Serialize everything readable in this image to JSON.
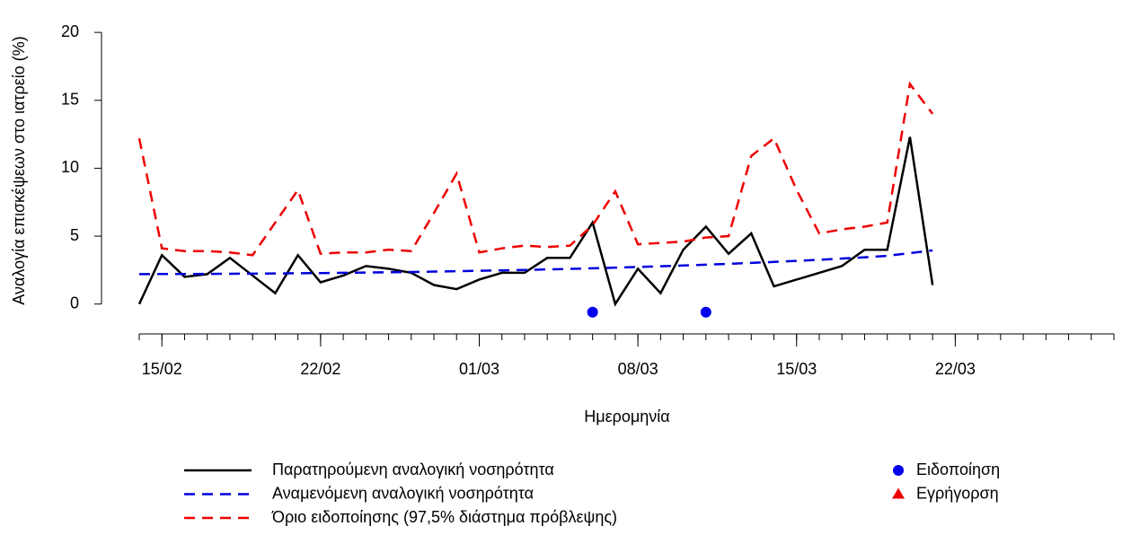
{
  "chart_data": {
    "type": "line",
    "ylabel": "Αναλογία επισκέψεων στο ιατρείο (%)",
    "xlabel": "Ημερομηνία",
    "x": [
      "14/02",
      "15/02",
      "16/02",
      "17/02",
      "18/02",
      "19/02",
      "20/02",
      "21/02",
      "22/02",
      "23/02",
      "24/02",
      "25/02",
      "26/02",
      "27/02",
      "28/02",
      "01/03",
      "02/03",
      "03/03",
      "04/03",
      "05/03",
      "06/03",
      "07/03",
      "08/03",
      "09/03",
      "10/03",
      "11/03",
      "12/03",
      "13/03",
      "14/03",
      "15/03",
      "16/03",
      "17/03",
      "18/03",
      "19/03",
      "20/03",
      "21/03"
    ],
    "series": [
      {
        "name": "Παρατηρούμενη αναλογική νοσηρότητα",
        "color": "#000000",
        "style": "solid",
        "values": [
          0,
          3.6,
          2.0,
          2.2,
          3.4,
          2.1,
          0.8,
          3.6,
          1.6,
          2.1,
          2.8,
          2.6,
          2.3,
          1.4,
          1.1,
          1.8,
          2.3,
          2.3,
          3.4,
          3.4,
          6.0,
          0,
          2.6,
          0.8,
          4.0,
          5.7,
          3.7,
          5.2,
          1.3,
          1.8,
          2.3,
          2.8,
          4.0,
          4.0,
          12.3,
          1.4
        ]
      },
      {
        "name": "Αναμενόμενη αναλογική νοσηρότητα",
        "color": "#0000dd",
        "style": "dashed",
        "values": [
          2.2,
          2.21,
          2.21,
          2.22,
          2.23,
          2.24,
          2.25,
          2.27,
          2.28,
          2.3,
          2.32,
          2.34,
          2.36,
          2.39,
          2.42,
          2.45,
          2.48,
          2.51,
          2.55,
          2.59,
          2.63,
          2.68,
          2.73,
          2.78,
          2.84,
          2.9,
          2.96,
          3.03,
          3.1,
          3.18,
          3.26,
          3.35,
          3.44,
          3.55,
          3.75,
          3.95
        ]
      },
      {
        "name": "Όριο ειδοποίησης (97,5% διάστημα πρόβλεψης)",
        "color": "#ee0000",
        "style": "dashed",
        "values": [
          12.2,
          4.1,
          3.9,
          3.9,
          3.8,
          3.6,
          6.0,
          8.4,
          3.7,
          3.8,
          3.8,
          4.0,
          3.9,
          6.7,
          9.6,
          3.8,
          4.1,
          4.3,
          4.2,
          4.3,
          5.8,
          8.3,
          4.4,
          4.5,
          4.6,
          4.9,
          5.0,
          10.9,
          12.2,
          8.4,
          5.2,
          5.5,
          5.7,
          6.0,
          16.2,
          14.0
        ]
      }
    ],
    "markers": [
      {
        "name": "Ειδοποίηση",
        "color": "#0000ee",
        "marker": "circle",
        "x": [
          "06/03",
          "11/03"
        ],
        "values": [
          -0.6,
          -0.6
        ]
      },
      {
        "name": "Εγρήγορση",
        "color": "#ee0000",
        "marker": "triangle",
        "x": [],
        "values": []
      }
    ],
    "xlim": [
      "14/02",
      "29/03"
    ],
    "xticks": [
      "15/02",
      "22/02",
      "01/03",
      "08/03",
      "15/03",
      "22/03"
    ],
    "ylim": [
      -2.2,
      20.8
    ],
    "yticks": [
      0,
      5,
      10,
      15,
      20
    ]
  }
}
